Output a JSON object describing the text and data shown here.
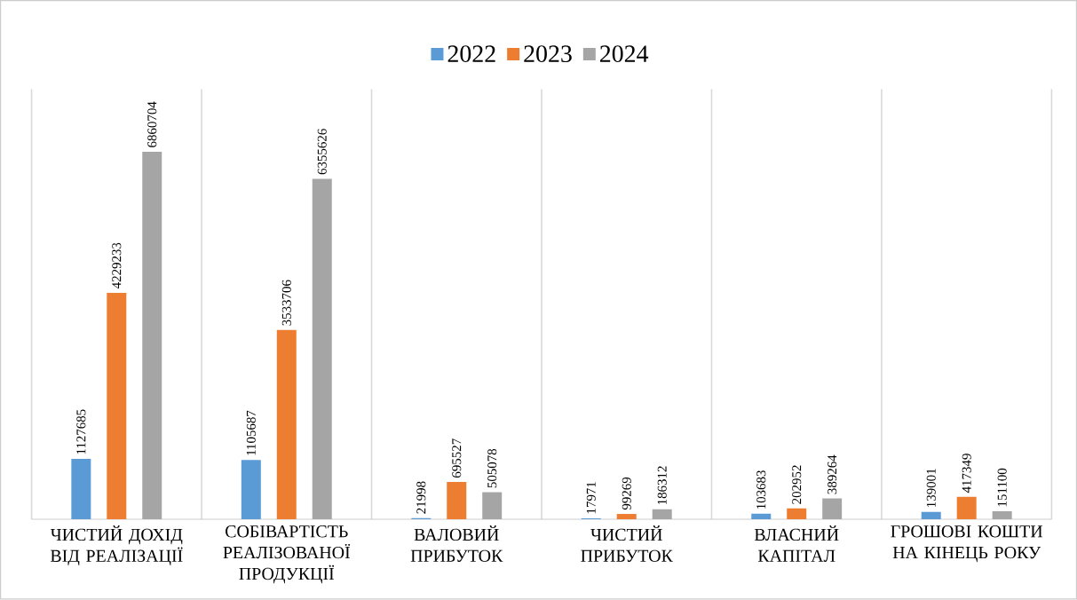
{
  "chart_data": {
    "type": "bar",
    "categories": [
      "ЧИСТИЙ ДОХІД ВІД РЕАЛІЗАЦІЇ",
      "СОБІВАРТІСТЬ РЕАЛІЗОВАНОЇ ПРОДУКЦІЇ",
      "ВАЛОВИЙ ПРИБУТОК",
      "ЧИСТИЙ ПРИБУТОК",
      "ВЛАСНИЙ КАПІТАЛ",
      "ГРОШОВІ КОШТИ НА КІНЕЦЬ РОКУ"
    ],
    "series": [
      {
        "name": "2022",
        "color": "#5b9bd5",
        "values": [
          1127685,
          1105687,
          21998,
          17971,
          103683,
          139001
        ]
      },
      {
        "name": "2023",
        "color": "#ed7d31",
        "values": [
          4229233,
          3533706,
          695527,
          99269,
          202952,
          417349
        ]
      },
      {
        "name": "2024",
        "color": "#a5a5a5",
        "values": [
          6860704,
          6355626,
          505078,
          186312,
          389264,
          151100
        ]
      }
    ],
    "data_labels": true,
    "legend": "top",
    "grid": "x"
  }
}
